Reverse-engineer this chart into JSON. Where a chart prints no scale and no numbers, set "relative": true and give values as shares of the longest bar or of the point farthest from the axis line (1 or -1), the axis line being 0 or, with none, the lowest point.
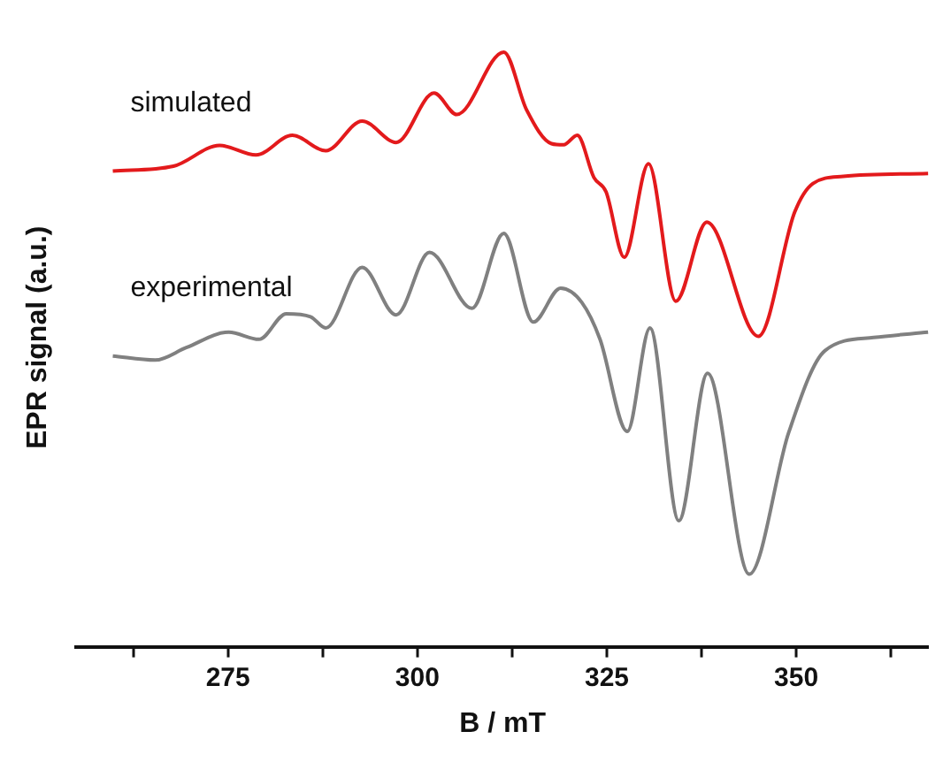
{
  "chart_data": {
    "type": "line",
    "relative": true,
    "xlabel": "B / mT",
    "ylabel": "EPR signal (a.u.)",
    "xlim": [
      255,
      367.5
    ],
    "xticks": [
      {
        "value": 262.5,
        "label": null
      },
      275,
      {
        "value": 287.5,
        "label": null
      },
      300,
      {
        "value": 312.5,
        "label": null
      },
      325,
      {
        "value": 337.5,
        "label": null
      },
      350,
      {
        "value": 362.5,
        "label": null
      }
    ],
    "grid": false,
    "legend": false,
    "marker": "none",
    "line_style": "solid",
    "series": [
      {
        "name": "simulated",
        "color": "#e31a1c",
        "x": [
          259.8,
          267.8,
          273.9,
          278.7,
          283.5,
          287.9,
          292.7,
          297.2,
          302.2,
          305.2,
          311.4,
          314.4,
          317.7,
          319.3,
          321.1,
          323.3,
          324.9,
          327.3,
          330.5,
          334.1,
          338.2,
          345.0,
          349.8,
          352.2,
          356.2,
          367.4
        ],
        "values": [
          0.8,
          0.808,
          0.843,
          0.827,
          0.86,
          0.834,
          0.884,
          0.848,
          0.931,
          0.895,
          1.0,
          0.903,
          0.846,
          0.844,
          0.86,
          0.789,
          0.765,
          0.655,
          0.812,
          0.581,
          0.714,
          0.522,
          0.731,
          0.779,
          0.791,
          0.796
        ]
      },
      {
        "name": "experimental",
        "color": "#808080",
        "x": [
          259.8,
          265.4,
          269.5,
          275.1,
          279.1,
          282.7,
          285.9,
          287.9,
          292.7,
          297.2,
          301.6,
          307.2,
          311.4,
          315.3,
          318.9,
          321.7,
          324.1,
          327.7,
          330.7,
          334.5,
          338.3,
          343.8,
          349.0,
          353.8,
          360.2,
          367.4
        ],
        "values": [
          0.489,
          0.482,
          0.503,
          0.529,
          0.517,
          0.56,
          0.555,
          0.536,
          0.638,
          0.558,
          0.663,
          0.569,
          0.695,
          0.546,
          0.603,
          0.579,
          0.517,
          0.362,
          0.536,
          0.212,
          0.46,
          0.122,
          0.36,
          0.498,
          0.52,
          0.529
        ]
      }
    ]
  }
}
